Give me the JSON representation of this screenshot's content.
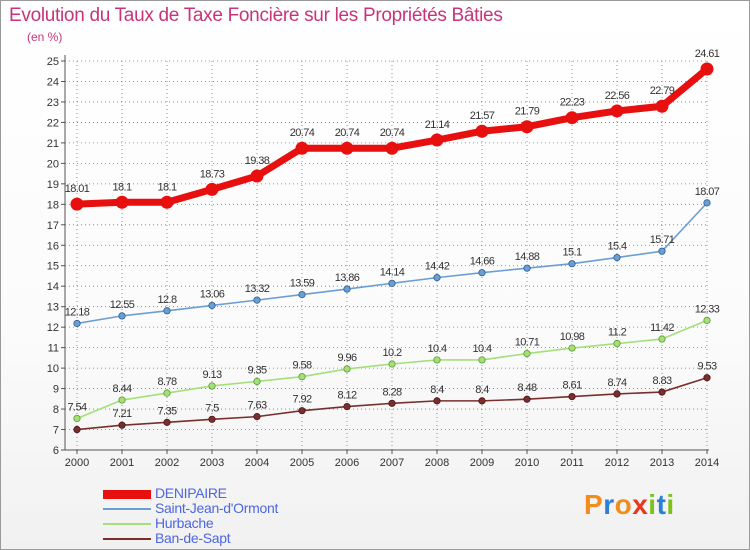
{
  "title": "Evolution du Taux de Taxe Foncière sur les Propriétés Bâties",
  "unit_label": "(en %)",
  "logo": [
    "P",
    "r",
    "o",
    "x",
    "i",
    "t",
    "i"
  ],
  "colors": {
    "title": "#c8347a",
    "legend_text": "#4d67de",
    "grid": "#d04a7a",
    "axis": "#555555",
    "logo": [
      "#f28c1a",
      "#2a7fd6",
      "#f28c1a",
      "#e8371c",
      "#7cc21a",
      "#2a7fd6",
      "#7cc21a"
    ]
  },
  "chart_data": {
    "type": "line",
    "x": [
      "2000",
      "2001",
      "2002",
      "2003",
      "2004",
      "2005",
      "2006",
      "2007",
      "2008",
      "2009",
      "2010",
      "2011",
      "2012",
      "2013",
      "2014"
    ],
    "ylim": [
      6,
      25
    ],
    "yticks": [
      "6",
      "7",
      "8",
      "9",
      "10",
      "11",
      "12",
      "13",
      "14",
      "15",
      "16",
      "17",
      "18",
      "19",
      "20",
      "21",
      "22",
      "23",
      "24",
      "25"
    ],
    "grid": true,
    "legend_position": "bottom-left",
    "series": [
      {
        "name": "DENIPAIRE",
        "color": "#e80f0f",
        "marker_edge": "#e80f0f",
        "values": [
          18.01,
          18.1,
          18.1,
          18.73,
          19.38,
          20.74,
          20.74,
          20.74,
          21.14,
          21.57,
          21.79,
          22.23,
          22.56,
          22.79,
          24.61
        ],
        "labels": [
          "18.01",
          "18.1",
          "18.1",
          "18.73",
          "19.38",
          "20.74",
          "20.74",
          "20.74",
          "21.14",
          "21.57",
          "21.79",
          "22.23",
          "22.56",
          "22.79",
          "24.61"
        ]
      },
      {
        "name": "Saint-Jean-d'Ormont",
        "color": "#6b9fd3",
        "marker_edge": "#2a5d95",
        "values": [
          12.18,
          12.55,
          12.8,
          13.06,
          13.32,
          13.59,
          13.86,
          14.14,
          14.42,
          14.66,
          14.88,
          15.1,
          15.4,
          15.71,
          18.07
        ],
        "labels": [
          "12.18",
          "12.55",
          "12.8",
          "13.06",
          "13.32",
          "13.59",
          "13.86",
          "14.14",
          "14.42",
          "14.66",
          "14.88",
          "15.1",
          "15.4",
          "15.71",
          "18.07"
        ]
      },
      {
        "name": "Hurbache",
        "color": "#a4e07a",
        "marker_edge": "#5c9a2f",
        "values": [
          7.54,
          8.44,
          8.78,
          9.13,
          9.35,
          9.58,
          9.96,
          10.2,
          10.4,
          10.4,
          10.71,
          10.98,
          11.2,
          11.42,
          12.33
        ],
        "labels": [
          "7.54",
          "8.44",
          "8.78",
          "9.13",
          "9.35",
          "9.58",
          "9.96",
          "10.2",
          "10.4",
          "10.4",
          "10.71",
          "10.98",
          "11.2",
          "11.42",
          "12.33"
        ]
      },
      {
        "name": "Ban-de-Sapt",
        "color": "#7a2e2e",
        "marker_edge": "#4a1616",
        "values": [
          7.0,
          7.21,
          7.35,
          7.5,
          7.63,
          7.92,
          8.12,
          8.28,
          8.4,
          8.4,
          8.48,
          8.61,
          8.74,
          8.83,
          9.53
        ],
        "labels": [
          "",
          "7.21",
          "7.35",
          "7.5",
          "7.63",
          "7.92",
          "8.12",
          "8.28",
          "8.4",
          "8.4",
          "8.48",
          "8.61",
          "8.74",
          "8.83",
          "9.53"
        ]
      }
    ]
  }
}
